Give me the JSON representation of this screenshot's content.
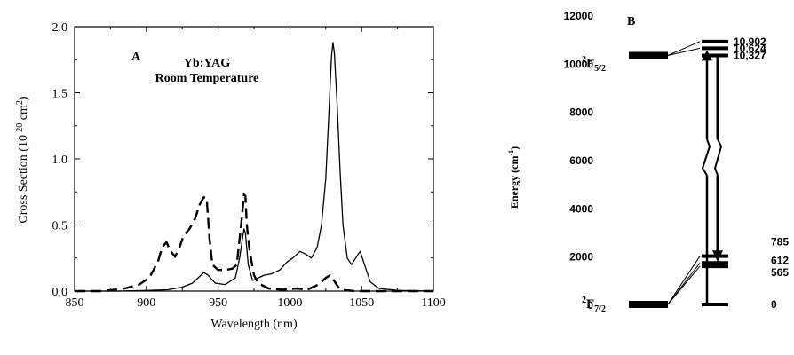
{
  "chart_data": [
    {
      "type": "line",
      "panel_label": "A",
      "annotation": [
        "Yb:YAG",
        "Room Temperature"
      ],
      "xlabel": "Wavelength (nm)",
      "ylabel_base": "Cross Section (10",
      "ylabel_exp1": "-20",
      "ylabel_mid": " cm",
      "ylabel_exp2": "2",
      "ylabel_end": ")",
      "xlim": [
        850,
        1100
      ],
      "ylim": [
        0,
        2.0
      ],
      "xticks": [
        850,
        900,
        950,
        1000,
        1050,
        1100
      ],
      "xtick_labels": [
        "850",
        "900",
        "950",
        "1000",
        "1050",
        "1100"
      ],
      "yticks": [
        0,
        0.5,
        1.0,
        1.5,
        2.0
      ],
      "ytick_labels": [
        "0.0",
        "0.5",
        "1.0",
        "1.5",
        "2.0"
      ],
      "grid": false,
      "series": [
        {
          "style": "solid",
          "points": [
            [
              850,
              0.0
            ],
            [
              880,
              0.0
            ],
            [
              900,
              0.005
            ],
            [
              915,
              0.01
            ],
            [
              925,
              0.03
            ],
            [
              932,
              0.06
            ],
            [
              937,
              0.11
            ],
            [
              940,
              0.14
            ],
            [
              943,
              0.12
            ],
            [
              948,
              0.06
            ],
            [
              955,
              0.05
            ],
            [
              962,
              0.1
            ],
            [
              965,
              0.25
            ],
            [
              967,
              0.4
            ],
            [
              968,
              0.47
            ],
            [
              969,
              0.44
            ],
            [
              971,
              0.2
            ],
            [
              974,
              0.08
            ],
            [
              978,
              0.1
            ],
            [
              982,
              0.12
            ],
            [
              987,
              0.13
            ],
            [
              993,
              0.16
            ],
            [
              998,
              0.22
            ],
            [
              1002,
              0.25
            ],
            [
              1007,
              0.3
            ],
            [
              1011,
              0.28
            ],
            [
              1015,
              0.25
            ],
            [
              1019,
              0.33
            ],
            [
              1022,
              0.5
            ],
            [
              1025,
              0.85
            ],
            [
              1027,
              1.3
            ],
            [
              1029,
              1.78
            ],
            [
              1030,
              1.88
            ],
            [
              1031,
              1.8
            ],
            [
              1033,
              1.4
            ],
            [
              1035,
              0.9
            ],
            [
              1037,
              0.5
            ],
            [
              1040,
              0.25
            ],
            [
              1043,
              0.2
            ],
            [
              1047,
              0.27
            ],
            [
              1049,
              0.3
            ],
            [
              1052,
              0.2
            ],
            [
              1056,
              0.07
            ],
            [
              1062,
              0.02
            ],
            [
              1075,
              0.005
            ],
            [
              1100,
              0.0
            ]
          ]
        },
        {
          "style": "dashed",
          "points": [
            [
              850,
              0.0
            ],
            [
              870,
              0.0
            ],
            [
              885,
              0.02
            ],
            [
              895,
              0.05
            ],
            [
              902,
              0.1
            ],
            [
              908,
              0.22
            ],
            [
              911,
              0.33
            ],
            [
              914,
              0.37
            ],
            [
              917,
              0.3
            ],
            [
              920,
              0.26
            ],
            [
              923,
              0.33
            ],
            [
              926,
              0.42
            ],
            [
              930,
              0.47
            ],
            [
              934,
              0.55
            ],
            [
              937,
              0.65
            ],
            [
              940,
              0.71
            ],
            [
              942,
              0.7
            ],
            [
              944,
              0.4
            ],
            [
              946,
              0.2
            ],
            [
              950,
              0.16
            ],
            [
              955,
              0.16
            ],
            [
              960,
              0.17
            ],
            [
              963,
              0.2
            ],
            [
              966,
              0.5
            ],
            [
              968,
              0.73
            ],
            [
              969,
              0.72
            ],
            [
              970,
              0.5
            ],
            [
              972,
              0.3
            ],
            [
              975,
              0.12
            ],
            [
              978,
              0.06
            ],
            [
              985,
              0.02
            ],
            [
              995,
              0.01
            ],
            [
              1005,
              0.02
            ],
            [
              1012,
              0.01
            ],
            [
              1020,
              0.05
            ],
            [
              1025,
              0.1
            ],
            [
              1028,
              0.12
            ],
            [
              1030,
              0.09
            ],
            [
              1035,
              0.01
            ],
            [
              1045,
              0.0
            ],
            [
              1100,
              0.0
            ]
          ]
        }
      ]
    },
    {
      "type": "diagram",
      "panel_label": "B",
      "ylabel": "Energy (cm",
      "ylabel_exp": "-1",
      "ylabel_end": ")",
      "yticks": [
        0,
        2000,
        4000,
        6000,
        8000,
        10000,
        12000
      ],
      "ytick_labels": [
        "0",
        "2000",
        "4000",
        "6000",
        "8000",
        "10000",
        "12000"
      ],
      "ylim": [
        0,
        12000
      ],
      "manifold_upper": {
        "main": "F",
        "pre": "2",
        "sub": "5/2",
        "energy": 10327
      },
      "manifold_lower": {
        "main": "F",
        "pre": "2",
        "sub": "7/2",
        "energy": 0
      },
      "upper_levels": [
        {
          "energy": 10902,
          "label": "10,902"
        },
        {
          "energy": 10624,
          "label": "10,624"
        },
        {
          "energy": 10327,
          "label": "10,327"
        }
      ],
      "lower_levels": [
        {
          "energy": 2000,
          "label": "785"
        },
        {
          "energy": 1720,
          "label": "612"
        },
        {
          "energy": 1580,
          "label": "565"
        },
        {
          "energy": 0,
          "label": "0"
        }
      ]
    }
  ]
}
